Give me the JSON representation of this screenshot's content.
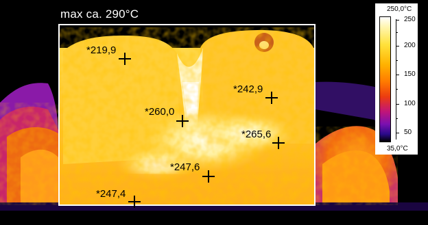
{
  "roi": {
    "label": "max ca. 290°C"
  },
  "readings": [
    {
      "label": "*219,9"
    },
    {
      "label": "*242,9"
    },
    {
      "label": "*260,0"
    },
    {
      "label": "*265,6"
    },
    {
      "label": "*247,6"
    },
    {
      "label": "*247,4"
    }
  ],
  "scale": {
    "max_label": "250,0°C",
    "min_label": "35,0°C",
    "ticks": [
      "250",
      "200",
      "150",
      "100",
      "50"
    ]
  },
  "colors": {
    "roi_outline": "#ffffff",
    "marker": "#000000"
  }
}
